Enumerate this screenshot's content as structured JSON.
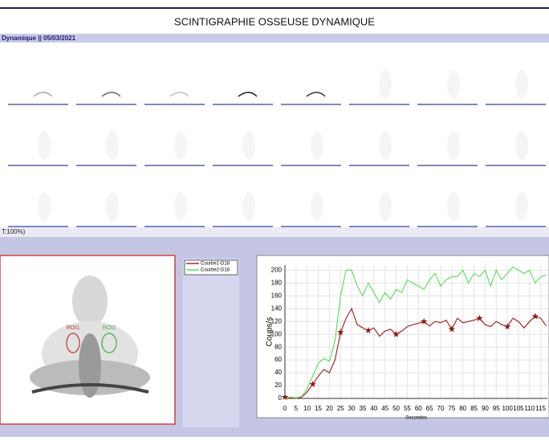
{
  "header": {
    "title": "SCINTIGRAPHIE OSSEUSE DYNAMIQUE",
    "subtitle": "Dynamique || 05/03/2021",
    "status": "T:100%)"
  },
  "rois": [
    {
      "label": "ROI1",
      "color": "#c0392b"
    },
    {
      "label": "ROI2",
      "color": "#3cb043"
    }
  ],
  "chart_data": {
    "type": "line",
    "y_label": "Coups/s",
    "x_label": "Secondes",
    "x": [
      0,
      2.5,
      5,
      7.5,
      10,
      12.5,
      15,
      17.5,
      20,
      22.5,
      25,
      27.5,
      30,
      32.5,
      35,
      37.5,
      40,
      42.5,
      45,
      47.5,
      50,
      52.5,
      55,
      57.5,
      60,
      62.5,
      65,
      67.5,
      70,
      72.5,
      75,
      77.5,
      80,
      82.5,
      85,
      87.5,
      90,
      92.5,
      95,
      97.5,
      100,
      102.5,
      105,
      107.5,
      110,
      112.5,
      115,
      117.5
    ],
    "series": [
      {
        "name": "Courbe1-D18",
        "color": "#a52a2a",
        "values": [
          2,
          1,
          0,
          2,
          10,
          22,
          35,
          45,
          40,
          60,
          103,
          125,
          140,
          115,
          110,
          106,
          110,
          97,
          105,
          108,
          100,
          105,
          112,
          115,
          117,
          120,
          113,
          120,
          118,
          122,
          108,
          125,
          118,
          120,
          122,
          125,
          115,
          112,
          120,
          115,
          112,
          125,
          120,
          110,
          120,
          128,
          125,
          113
        ]
      },
      {
        "name": "Courbe2-D18",
        "color": "#66dd66",
        "values": [
          0,
          2,
          1,
          3,
          15,
          35,
          55,
          62,
          58,
          90,
          160,
          200,
          200,
          175,
          160,
          180,
          165,
          150,
          165,
          155,
          170,
          165,
          185,
          180,
          175,
          170,
          185,
          195,
          175,
          185,
          190,
          190,
          200,
          180,
          195,
          190,
          200,
          175,
          200,
          185,
          195,
          205,
          200,
          195,
          200,
          180,
          190,
          192
        ]
      }
    ],
    "xlim": [
      0,
      118
    ],
    "ylim": [
      0,
      208
    ],
    "xticks": [
      0,
      5,
      10,
      15,
      20,
      25,
      30,
      35,
      40,
      45,
      50,
      55,
      60,
      65,
      70,
      75,
      80,
      85,
      90,
      95,
      100,
      105,
      110,
      115
    ],
    "yticks": [
      0,
      20,
      40,
      60,
      80,
      100,
      120,
      140,
      160,
      180,
      200
    ],
    "grid": true
  }
}
